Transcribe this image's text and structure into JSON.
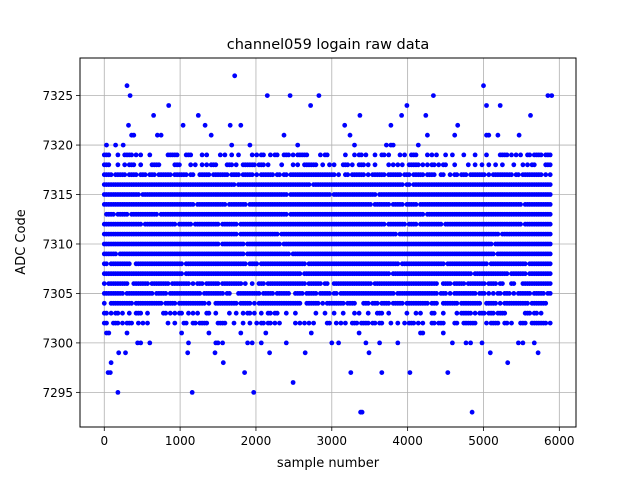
{
  "chart_data": {
    "type": "scatter",
    "title": "channel059 logain raw data",
    "xlabel": "sample number",
    "ylabel": "ADC Code",
    "xlim": [
      -320,
      6220
    ],
    "ylim": [
      7291.5,
      7328.8
    ],
    "xticks": [
      0,
      1000,
      2000,
      3000,
      4000,
      5000,
      6000
    ],
    "yticks": [
      7295,
      7300,
      7305,
      7310,
      7315,
      7320,
      7325
    ],
    "grid": true,
    "marker_color": "#0000ff",
    "series": [
      {
        "n_samples": 5900,
        "x_start": 0,
        "x_end": 5900,
        "dense_levels": [
          7302,
          7303,
          7304,
          7305,
          7306,
          7307,
          7308,
          7309,
          7310,
          7311,
          7312,
          7313,
          7314,
          7315,
          7316,
          7317,
          7318,
          7319
        ],
        "outliers": [
          {
            "x": 30,
            "y": 7320
          },
          {
            "x": 50,
            "y": 7297
          },
          {
            "x": 80,
            "y": 7297
          },
          {
            "x": 90,
            "y": 7298
          },
          {
            "x": 180,
            "y": 7295
          },
          {
            "x": 190,
            "y": 7299
          },
          {
            "x": 250,
            "y": 7320
          },
          {
            "x": 280,
            "y": 7299
          },
          {
            "x": 300,
            "y": 7326
          },
          {
            "x": 320,
            "y": 7322
          },
          {
            "x": 340,
            "y": 7325
          },
          {
            "x": 360,
            "y": 7321
          },
          {
            "x": 440,
            "y": 7300
          },
          {
            "x": 650,
            "y": 7323
          },
          {
            "x": 700,
            "y": 7321
          },
          {
            "x": 850,
            "y": 7324
          },
          {
            "x": 1040,
            "y": 7322
          },
          {
            "x": 1100,
            "y": 7299
          },
          {
            "x": 1160,
            "y": 7295
          },
          {
            "x": 1240,
            "y": 7323
          },
          {
            "x": 1330,
            "y": 7322
          },
          {
            "x": 1460,
            "y": 7299
          },
          {
            "x": 1570,
            "y": 7298
          },
          {
            "x": 1660,
            "y": 7322
          },
          {
            "x": 1720,
            "y": 7327
          },
          {
            "x": 1800,
            "y": 7322
          },
          {
            "x": 1850,
            "y": 7297
          },
          {
            "x": 1970,
            "y": 7295
          },
          {
            "x": 2150,
            "y": 7325
          },
          {
            "x": 2180,
            "y": 7299
          },
          {
            "x": 2450,
            "y": 7325
          },
          {
            "x": 2490,
            "y": 7296
          },
          {
            "x": 2650,
            "y": 7299
          },
          {
            "x": 2720,
            "y": 7324
          },
          {
            "x": 2830,
            "y": 7325
          },
          {
            "x": 3170,
            "y": 7322
          },
          {
            "x": 3250,
            "y": 7297
          },
          {
            "x": 3370,
            "y": 7323
          },
          {
            "x": 3380,
            "y": 7293
          },
          {
            "x": 3400,
            "y": 7293
          },
          {
            "x": 3490,
            "y": 7299
          },
          {
            "x": 3660,
            "y": 7297
          },
          {
            "x": 3780,
            "y": 7322
          },
          {
            "x": 3920,
            "y": 7323
          },
          {
            "x": 3990,
            "y": 7324
          },
          {
            "x": 4030,
            "y": 7297
          },
          {
            "x": 4240,
            "y": 7323
          },
          {
            "x": 4340,
            "y": 7325
          },
          {
            "x": 4530,
            "y": 7297
          },
          {
            "x": 4660,
            "y": 7322
          },
          {
            "x": 4850,
            "y": 7293
          },
          {
            "x": 5000,
            "y": 7326
          },
          {
            "x": 5040,
            "y": 7324
          },
          {
            "x": 5090,
            "y": 7299
          },
          {
            "x": 5220,
            "y": 7324
          },
          {
            "x": 5320,
            "y": 7298
          },
          {
            "x": 5470,
            "y": 7321
          },
          {
            "x": 5620,
            "y": 7323
          },
          {
            "x": 5720,
            "y": 7299
          },
          {
            "x": 5850,
            "y": 7325
          },
          {
            "x": 5900,
            "y": 7325
          }
        ]
      }
    ]
  }
}
